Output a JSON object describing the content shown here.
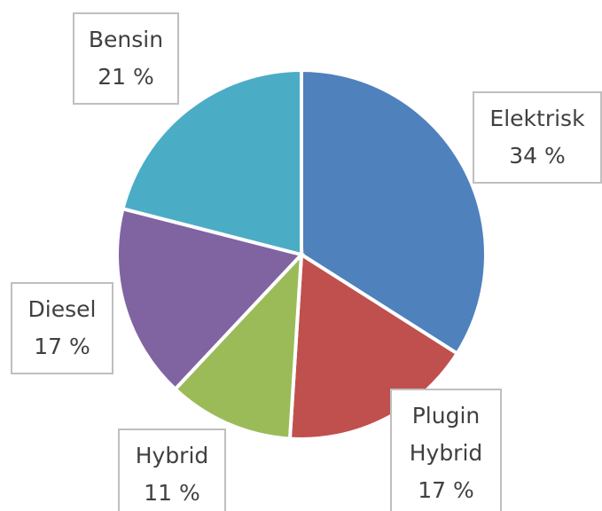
{
  "chart_data": {
    "type": "pie",
    "categories": [
      "Elektrisk",
      "Plugin Hybrid",
      "Hybrid",
      "Diesel",
      "Bensin"
    ],
    "values": [
      34,
      17,
      11,
      17,
      21
    ],
    "value_labels": [
      "34 %",
      "17 %",
      "11 %",
      "17 %",
      "21 %"
    ],
    "colors": [
      "#4f81bd",
      "#c0504d",
      "#9bbb59",
      "#8064a2",
      "#4bacc6"
    ]
  }
}
